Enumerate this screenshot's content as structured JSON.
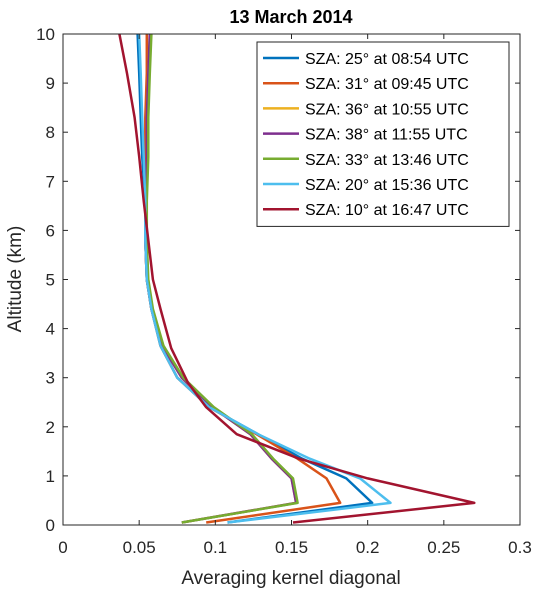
{
  "chart_data": {
    "type": "line",
    "title": "13 March 2014",
    "xlabel": "Averaging kernel diagonal",
    "ylabel": "Altitude (km)",
    "xlim": [
      0,
      0.3
    ],
    "ylim": [
      0,
      10
    ],
    "xticks": [
      0,
      0.05,
      0.1,
      0.15,
      0.2,
      0.25,
      0.3
    ],
    "xtick_labels": [
      "0",
      "0.05",
      "0.1",
      "0.15",
      "0.2",
      "0.25",
      "0.3"
    ],
    "yticks": [
      0,
      1,
      2,
      3,
      4,
      5,
      6,
      7,
      8,
      9,
      10
    ],
    "ytick_labels": [
      "0",
      "1",
      "2",
      "3",
      "4",
      "5",
      "6",
      "7",
      "8",
      "9",
      "10"
    ],
    "grid": false,
    "legend_position": "top-right",
    "series": [
      {
        "name": "SZA: 25° at 08:54 UTC",
        "color": "#0072BD",
        "x": [
          0.108,
          0.203,
          0.186,
          0.157,
          0.128,
          0.096,
          0.075,
          0.064,
          0.058,
          0.055,
          0.054,
          0.054,
          0.052,
          0.051,
          0.05,
          0.049
        ],
        "y": [
          0.05,
          0.45,
          0.95,
          1.35,
          1.85,
          2.4,
          3.0,
          3.65,
          4.4,
          5.0,
          5.8,
          6.6,
          7.5,
          8.3,
          9.2,
          10.0
        ]
      },
      {
        "name": "SZA: 31° at 09:45 UTC",
        "color": "#D95319",
        "x": [
          0.094,
          0.182,
          0.173,
          0.154,
          0.127,
          0.096,
          0.075,
          0.064,
          0.058,
          0.055,
          0.054,
          0.054,
          0.054,
          0.054,
          0.055,
          0.055
        ],
        "y": [
          0.05,
          0.45,
          0.95,
          1.35,
          1.85,
          2.4,
          3.0,
          3.65,
          4.4,
          5.0,
          5.8,
          6.6,
          7.5,
          8.3,
          9.2,
          10.0
        ]
      },
      {
        "name": "SZA: 36° at 10:55 UTC",
        "color": "#EDB120",
        "x": [
          0.078,
          0.153,
          0.15,
          0.137,
          0.123,
          0.098,
          0.078,
          0.065,
          0.058,
          0.055,
          0.054,
          0.054,
          0.055,
          0.055,
          0.056,
          0.057
        ],
        "y": [
          0.05,
          0.45,
          0.95,
          1.35,
          1.85,
          2.4,
          3.0,
          3.65,
          4.4,
          5.0,
          5.8,
          6.6,
          7.5,
          8.3,
          9.2,
          10.0
        ]
      },
      {
        "name": "SZA: 38° at 11:55 UTC",
        "color": "#7E2F8E",
        "x": [
          0.078,
          0.153,
          0.15,
          0.137,
          0.123,
          0.098,
          0.078,
          0.065,
          0.058,
          0.055,
          0.054,
          0.054,
          0.055,
          0.055,
          0.056,
          0.057
        ],
        "y": [
          0.05,
          0.45,
          0.95,
          1.35,
          1.85,
          2.4,
          3.0,
          3.65,
          4.4,
          5.0,
          5.8,
          6.6,
          7.5,
          8.3,
          9.2,
          10.0
        ]
      },
      {
        "name": "SZA: 33° at 13:46 UTC",
        "color": "#77AC30",
        "x": [
          0.078,
          0.154,
          0.151,
          0.138,
          0.124,
          0.099,
          0.079,
          0.066,
          0.059,
          0.056,
          0.055,
          0.055,
          0.056,
          0.056,
          0.057,
          0.058
        ],
        "y": [
          0.05,
          0.45,
          0.95,
          1.35,
          1.85,
          2.4,
          3.0,
          3.65,
          4.4,
          5.0,
          5.8,
          6.6,
          7.5,
          8.3,
          9.2,
          10.0
        ]
      },
      {
        "name": "SZA: 20° at 15:36 UTC",
        "color": "#4DBEEE",
        "x": [
          0.108,
          0.215,
          0.195,
          0.162,
          0.128,
          0.096,
          0.075,
          0.064,
          0.058,
          0.055,
          0.054,
          0.054,
          0.053,
          0.052,
          0.051,
          0.05
        ],
        "y": [
          0.05,
          0.45,
          0.95,
          1.35,
          1.85,
          2.4,
          3.0,
          3.65,
          4.4,
          5.0,
          5.8,
          6.6,
          7.5,
          8.3,
          9.2,
          10.0
        ]
      },
      {
        "name": "SZA: 10° at 16:47 UTC",
        "color": "#A2142F",
        "x": [
          0.151,
          0.27,
          0.2,
          0.155,
          0.114,
          0.094,
          0.082,
          0.071,
          0.064,
          0.059,
          0.056,
          0.053,
          0.05,
          0.047,
          0.042,
          0.037
        ],
        "y": [
          0.05,
          0.45,
          0.95,
          1.35,
          1.85,
          2.4,
          2.9,
          3.6,
          4.4,
          5.0,
          5.8,
          6.6,
          7.5,
          8.3,
          9.2,
          10.0
        ]
      }
    ]
  }
}
